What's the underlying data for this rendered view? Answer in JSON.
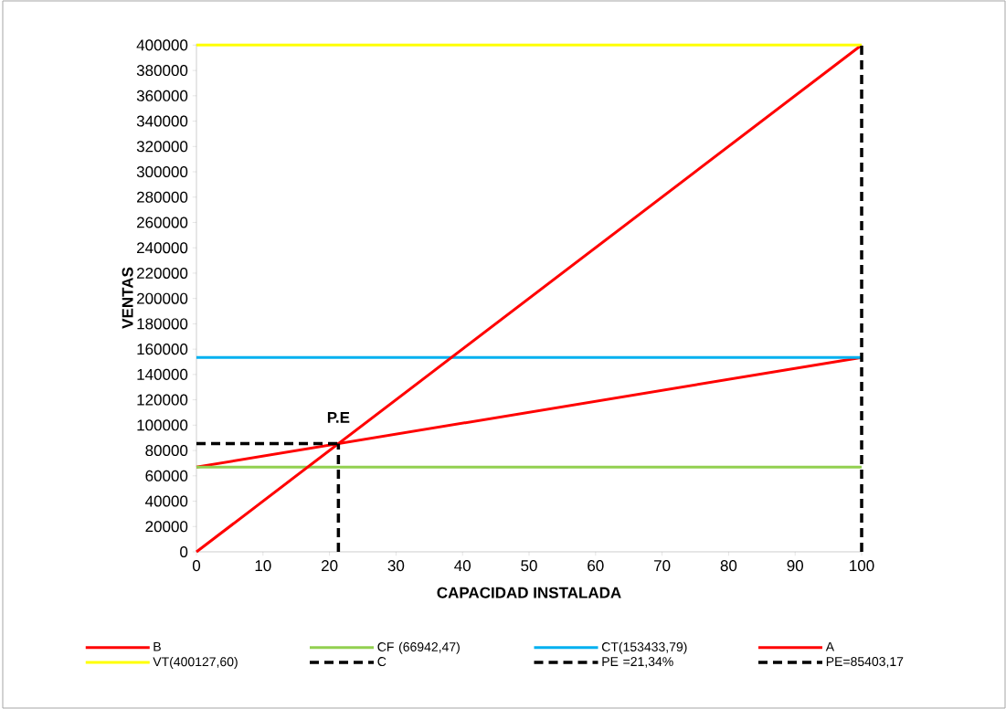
{
  "chart_data": {
    "type": "line",
    "xlabel": "CAPACIDAD INSTALADA",
    "ylabel": "VENTAS",
    "xlim": [
      0,
      100
    ],
    "xticks": [
      0,
      10,
      20,
      30,
      40,
      50,
      60,
      70,
      80,
      90,
      100
    ],
    "ylim": [
      0,
      401000
    ],
    "yticks": [
      0,
      20000,
      40000,
      60000,
      80000,
      100000,
      120000,
      140000,
      160000,
      180000,
      200000,
      220000,
      240000,
      260000,
      280000,
      300000,
      320000,
      340000,
      360000,
      380000,
      400000
    ],
    "legend": "bottom",
    "marker": "none",
    "annotations": [
      {
        "text": "P.E",
        "x": 21.34,
        "y": 85403.17
      }
    ],
    "series": [
      {
        "name": "B",
        "color": "#ff0000",
        "x": [
          0,
          100
        ],
        "values": [
          66942.47,
          153433.79
        ]
      },
      {
        "name": "CF (66942,47)",
        "color": "#92d050",
        "x": [
          0,
          100
        ],
        "values": [
          66942.47,
          66942.47
        ]
      },
      {
        "name": "CT(153433,79)",
        "color": "#00b0f0",
        "x": [
          0,
          100
        ],
        "values": [
          153433.79,
          153433.79
        ]
      },
      {
        "name": "A",
        "color": "#ff0000",
        "x": [
          0,
          100
        ],
        "values": [
          0,
          400127.6
        ]
      },
      {
        "name": "VT(400127,60)",
        "color": "#ffff00",
        "x": [
          0,
          100
        ],
        "values": [
          400127.6,
          400127.6
        ]
      },
      {
        "name": "C",
        "color": "#000000",
        "line_style": "dashed",
        "x": [
          100,
          100
        ],
        "values": [
          0,
          400127.6
        ]
      },
      {
        "name": "PE =21,34%",
        "color": "#000000",
        "line_style": "dashed",
        "x": [
          21.34,
          21.34
        ],
        "values": [
          0,
          85403.17
        ]
      },
      {
        "name": "PE=85403,17",
        "color": "#000000",
        "line_style": "dashed",
        "x": [
          0,
          21.34
        ],
        "values": [
          85403.17,
          85403.17
        ]
      }
    ]
  }
}
